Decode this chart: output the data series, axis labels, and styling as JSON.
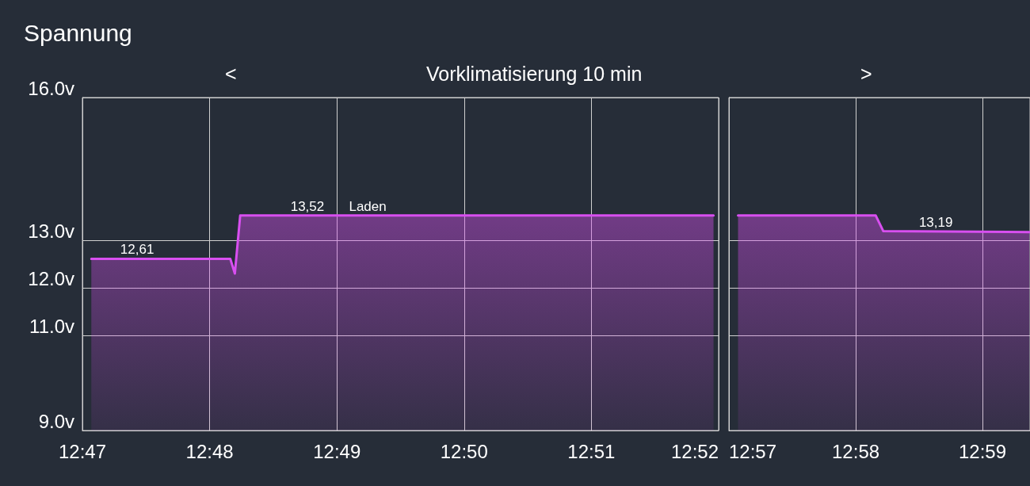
{
  "chart_data": [
    {
      "type": "area",
      "title": "Spannung",
      "subtitle": "Vorklimatisierung 10 min",
      "annotations": [
        "<",
        {
          "text": "12,61",
          "x": 12.7905,
          "y": 12.61
        },
        {
          "text": "13,52",
          "x": 12.8128,
          "y": 13.52
        },
        {
          "text": "Laden",
          "x": 12.8207,
          "y": 13.52
        }
      ],
      "series": [
        {
          "color": "#d84ff0",
          "x": [
            12.7845,
            12.8027,
            12.8033,
            12.804,
            12.866
          ],
          "values": [
            12.61,
            12.61,
            12.3,
            13.52,
            13.52
          ]
        }
      ],
      "xlim": [
        12.78333,
        12.86667
      ],
      "xticks": [
        {
          "value": 12.78333,
          "label": "12:47"
        },
        {
          "value": 12.8,
          "label": "12:48"
        },
        {
          "value": 12.81667,
          "label": "12:49"
        },
        {
          "value": 12.83333,
          "label": "12:50"
        },
        {
          "value": 12.85,
          "label": "12:51"
        },
        {
          "value": 12.86667,
          "label": "12:52"
        }
      ],
      "ylim": [
        9,
        16
      ],
      "yticks": [
        {
          "value": 9,
          "label": "9.0v"
        },
        {
          "value": 11,
          "label": "11.0v"
        },
        {
          "value": 12,
          "label": "12.0v"
        },
        {
          "value": 13,
          "label": "13.0v"
        },
        {
          "value": 16,
          "label": "16.0v"
        }
      ],
      "grid": true
    },
    {
      "type": "area",
      "annotations": [
        ">",
        {
          "text": "13,19",
          "x": 12.9772,
          "y": 13.19
        }
      ],
      "series": [
        {
          "color": "#d84ff0",
          "x": [
            12.9512,
            12.9693,
            12.9703,
            12.9895
          ],
          "values": [
            13.52,
            13.52,
            13.19,
            13.17
          ]
        }
      ],
      "xlim": [
        12.95,
        12.98958
      ],
      "xticks": [
        {
          "value": 12.95,
          "label": "12:57"
        },
        {
          "value": 12.96667,
          "label": "12:58"
        },
        {
          "value": 12.98333,
          "label": "12:59"
        }
      ],
      "ylim": [
        9,
        16
      ],
      "yticks": [
        9,
        11,
        12,
        13,
        16
      ],
      "grid": true,
      "tick_labels": "x"
    }
  ]
}
